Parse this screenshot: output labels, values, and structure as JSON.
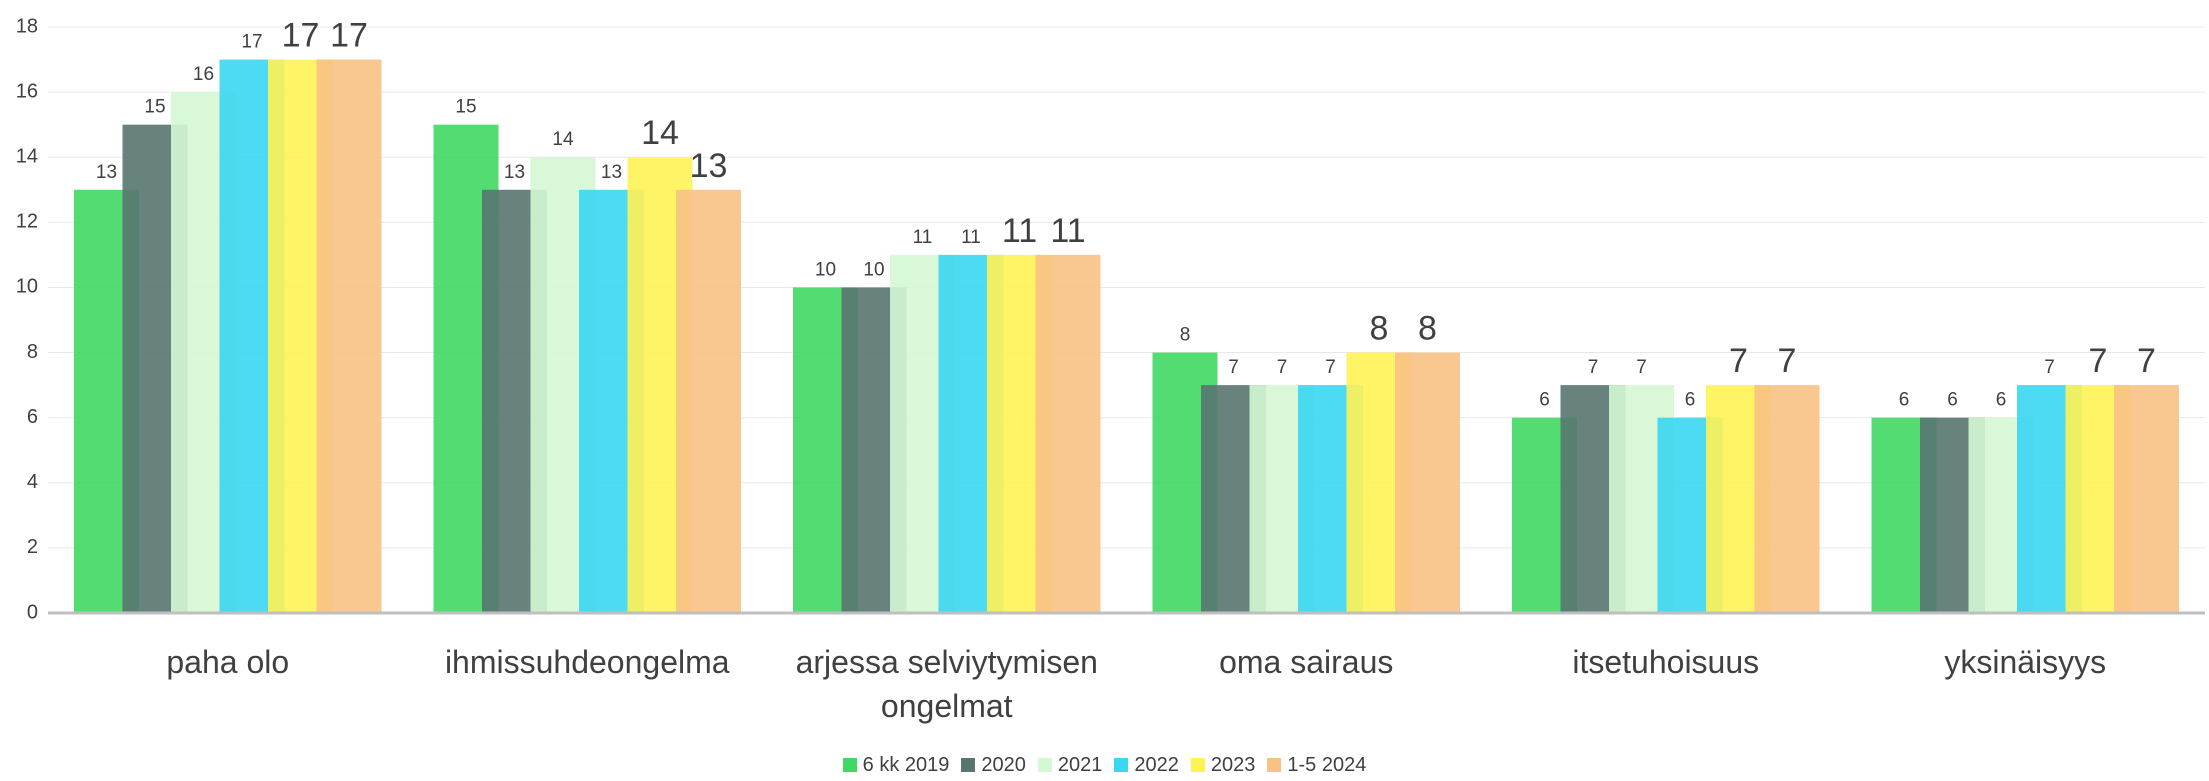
{
  "chart_data": {
    "type": "bar",
    "categories": [
      "paha olo",
      "ihmissuhdeongelma",
      "arjessa selviytymisen ongelmat",
      "oma sairaus",
      "itsetuhoisuus",
      "yksinäisyys"
    ],
    "series": [
      {
        "name": "6 kk 2019",
        "color": "#3fd862",
        "values": [
          13,
          15,
          10,
          8,
          6,
          6
        ]
      },
      {
        "name": "2020",
        "color": "#587570",
        "values": [
          15,
          13,
          10,
          7,
          7,
          6
        ]
      },
      {
        "name": "2021",
        "color": "#d4f7d4",
        "values": [
          16,
          14,
          11,
          7,
          7,
          6
        ]
      },
      {
        "name": "2022",
        "color": "#3ad6f2",
        "values": [
          17,
          13,
          11,
          7,
          6,
          7
        ]
      },
      {
        "name": "2023",
        "color": "#fff255",
        "values": [
          17,
          14,
          11,
          8,
          7,
          7
        ]
      },
      {
        "name": "1-5 2024",
        "color": "#f8c284",
        "values": [
          17,
          13,
          11,
          8,
          7,
          7
        ]
      }
    ],
    "ylim": [
      0,
      18
    ],
    "yticks": [
      0,
      2,
      4,
      6,
      8,
      10,
      12,
      14,
      16,
      18
    ],
    "grid": true,
    "legend": "bottom"
  }
}
